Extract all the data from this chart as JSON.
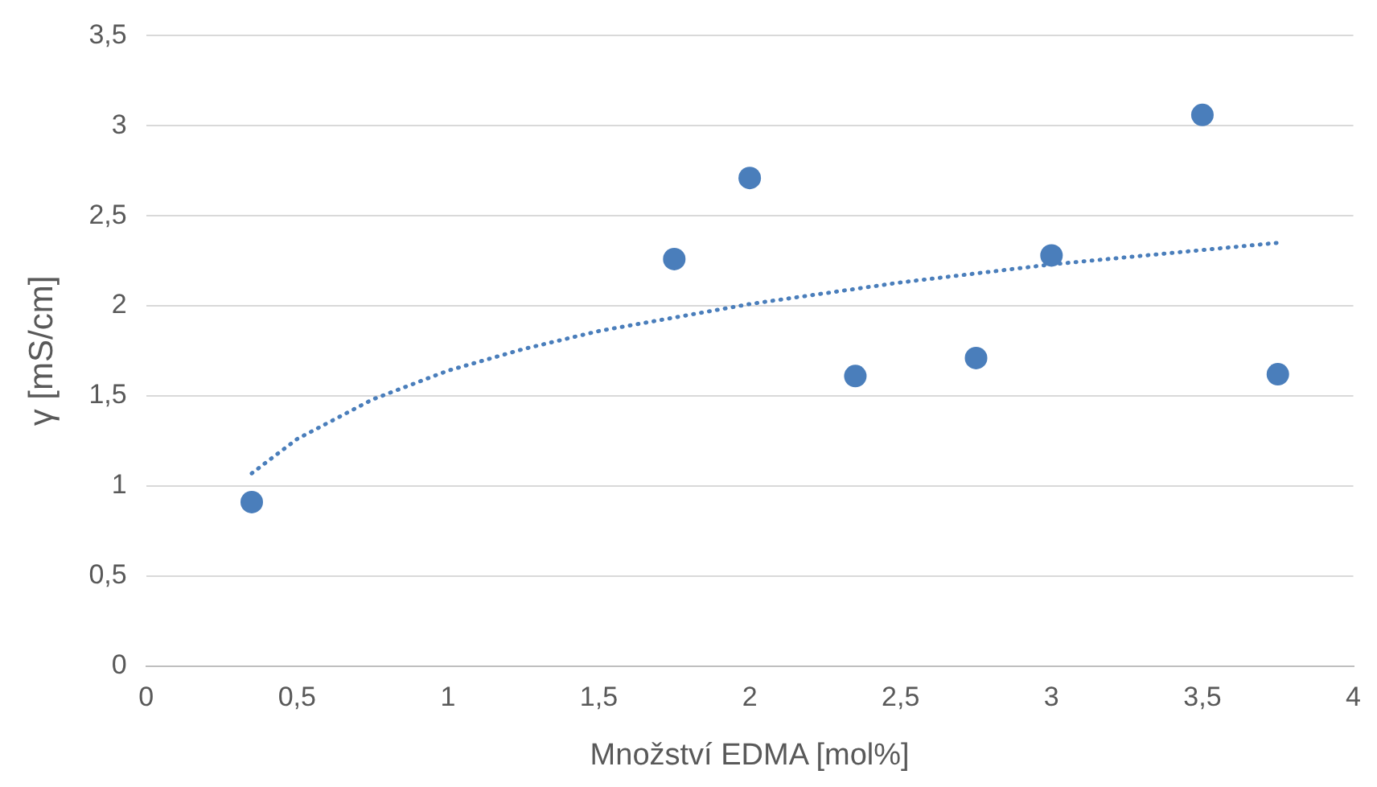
{
  "chart_data": {
    "type": "scatter",
    "xlabel": "Množství EDMA [mol%]",
    "ylabel": "γ [mS/cm]",
    "xlim": [
      0,
      4
    ],
    "ylim": [
      0,
      3.5
    ],
    "xticks": [
      0,
      {
        "value": 0.5,
        "label": "0,5"
      },
      1,
      {
        "value": 1.5,
        "label": "1,5"
      },
      2,
      {
        "value": 2.5,
        "label": "2,5"
      },
      3,
      {
        "value": 3.5,
        "label": "3,5"
      },
      4
    ],
    "yticks": [
      0,
      {
        "value": 0.5,
        "label": "0,5"
      },
      1,
      {
        "value": 1.5,
        "label": "1,5"
      },
      2,
      {
        "value": 2.5,
        "label": "2,5"
      },
      3,
      {
        "value": 3.5,
        "label": "3,5"
      }
    ],
    "grid": "y",
    "legend": false,
    "marker": "circle",
    "series": [
      {
        "color": "#4a7ebb",
        "x": [
          0.35,
          1.75,
          2.0,
          2.35,
          2.75,
          3.0,
          3.5,
          3.75
        ],
        "values": [
          0.91,
          2.26,
          2.71,
          1.61,
          1.71,
          2.28,
          3.06,
          1.62
        ]
      },
      {
        "type": "line",
        "color": "#4a7ebb",
        "line_style": "dotted",
        "marker": "none",
        "x": [
          0.35,
          0.5,
          0.75,
          1,
          1.25,
          1.5,
          2,
          2.5,
          3,
          3.5,
          3.75
        ],
        "values": [
          1.07,
          1.26,
          1.48,
          1.64,
          1.76,
          1.86,
          2.01,
          2.13,
          2.23,
          2.31,
          2.35
        ]
      }
    ]
  }
}
